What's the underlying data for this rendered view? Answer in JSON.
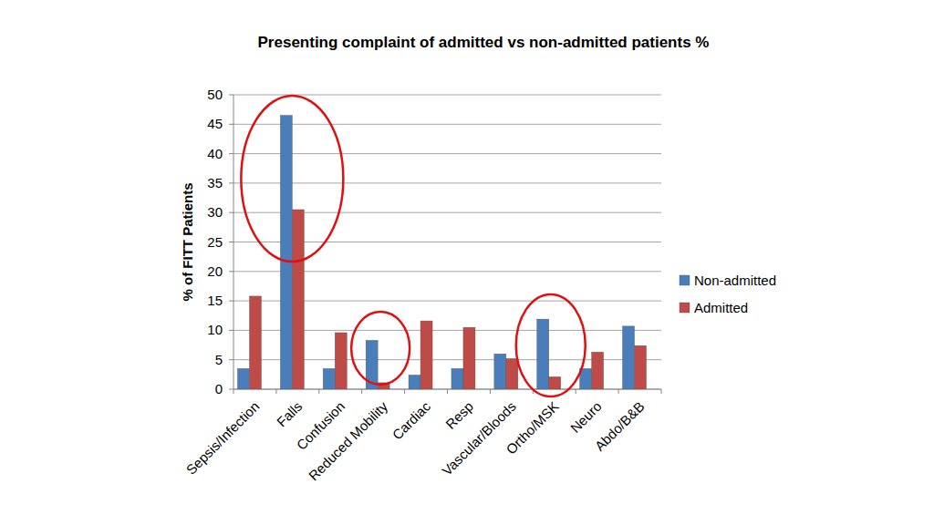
{
  "chart_data": {
    "type": "bar",
    "title": "Presenting complaint of admitted vs non-admitted patients %",
    "y_label": "% of FITT Patients",
    "categories": [
      "Sepsis/Infection",
      "Falls",
      "Confusion",
      "Reduced Mobility",
      "Cardiac",
      "Resp",
      "Vascular/Bloods",
      "Ortho/MSK",
      "Neuro",
      "Abdo/B&B"
    ],
    "series": [
      {
        "name": "Non-admitted",
        "color": "#4a7ebb",
        "values": [
          3.5,
          46.5,
          3.5,
          8.3,
          2.4,
          3.5,
          6.0,
          11.9,
          3.5,
          10.7
        ]
      },
      {
        "name": "Admitted",
        "color": "#be4b48",
        "values": [
          15.8,
          30.5,
          9.6,
          1.1,
          11.6,
          10.5,
          5.2,
          2.1,
          6.3,
          7.4
        ]
      }
    ],
    "ylim": [
      0,
      50
    ],
    "yticks": [
      0,
      5,
      10,
      15,
      20,
      25,
      30,
      35,
      40,
      45,
      50
    ],
    "grid": true,
    "legend": "right"
  }
}
